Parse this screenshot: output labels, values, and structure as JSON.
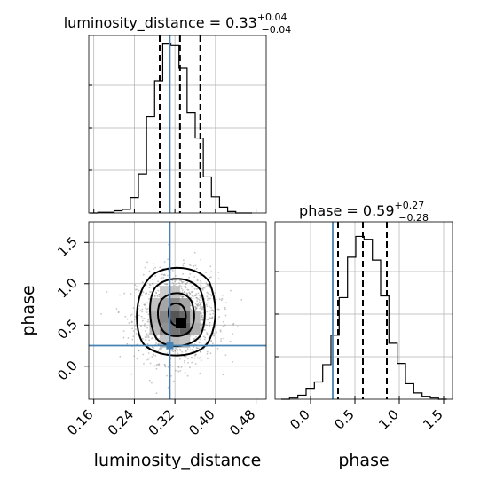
{
  "chart_data": [
    {
      "type": "histogram",
      "panel": "marginal-luminosity_distance",
      "title_prefix": "luminosity_distance = 0.33",
      "title_sup": "+0.04",
      "title_sub": "−0.04",
      "xlim": [
        0.15,
        0.5
      ],
      "bins": [
        0.152,
        0.168,
        0.184,
        0.2,
        0.216,
        0.232,
        0.248,
        0.264,
        0.28,
        0.296,
        0.312,
        0.328,
        0.344,
        0.36,
        0.376,
        0.392,
        0.408,
        0.424,
        0.44,
        0.456,
        0.472
      ],
      "counts": [
        0,
        1,
        1,
        3,
        5,
        21,
        53,
        131,
        180,
        230,
        228,
        197,
        137,
        102,
        49,
        22,
        8,
        2,
        0,
        0
      ],
      "max_count": 232,
      "truth": 0.31,
      "quantiles": [
        0.29,
        0.33,
        0.37
      ],
      "grid": true
    },
    {
      "type": "histogram",
      "panel": "marginal-phase",
      "title_prefix": "phase = 0.59",
      "title_sup": "+0.27",
      "title_sub": "−0.28",
      "xlim": [
        -0.4,
        1.6
      ],
      "bins": [
        -0.33,
        -0.237,
        -0.143,
        -0.05,
        0.043,
        0.137,
        0.23,
        0.323,
        0.417,
        0.51,
        0.603,
        0.697,
        0.79,
        0.883,
        0.977,
        1.07,
        1.163,
        1.257,
        1.35,
        1.443,
        1.537
      ],
      "counts": [
        0,
        2,
        7,
        19,
        30,
        60,
        111,
        176,
        246,
        282,
        277,
        241,
        179,
        97,
        62,
        27,
        11,
        5,
        2,
        0
      ],
      "max_count": 295,
      "truth": 0.25,
      "quantiles": [
        0.31,
        0.59,
        0.86
      ],
      "xticks": [
        "0.0",
        "0.5",
        "1.0",
        "1.5"
      ],
      "xtick_values": [
        0.0,
        0.5,
        1.0,
        1.5
      ],
      "xlabel": "phase",
      "grid": true
    },
    {
      "type": "scatter",
      "panel": "joint-luminosity_distance-phase",
      "xlim": [
        0.15,
        0.5
      ],
      "ylim": [
        -0.4,
        1.75
      ],
      "xticks": [
        "0.16",
        "0.24",
        "0.32",
        "0.40",
        "0.48"
      ],
      "xtick_values": [
        0.16,
        0.24,
        0.32,
        0.4,
        0.48
      ],
      "yticks": [
        "0.0",
        "0.5",
        "1.0",
        "1.5"
      ],
      "ytick_values": [
        0.0,
        0.5,
        1.0,
        1.5
      ],
      "xlabel": "luminosity_distance",
      "ylabel": "phase",
      "truth": [
        0.31,
        0.25
      ],
      "contour_levels": [
        "0.5σ",
        "1σ",
        "1.5σ",
        "2σ"
      ],
      "density_cells": [
        {
          "x": 0.28,
          "y": 0.45,
          "v": 0.35
        },
        {
          "x": 0.3,
          "y": 0.45,
          "v": 0.55
        },
        {
          "x": 0.32,
          "y": 0.45,
          "v": 0.7
        },
        {
          "x": 0.34,
          "y": 0.45,
          "v": 0.8
        },
        {
          "x": 0.36,
          "y": 0.45,
          "v": 0.4
        },
        {
          "x": 0.28,
          "y": 0.6,
          "v": 0.4
        },
        {
          "x": 0.3,
          "y": 0.6,
          "v": 0.6
        },
        {
          "x": 0.32,
          "y": 0.6,
          "v": 0.85
        },
        {
          "x": 0.34,
          "y": 0.6,
          "v": 0.75
        },
        {
          "x": 0.36,
          "y": 0.6,
          "v": 0.35
        },
        {
          "x": 0.28,
          "y": 0.75,
          "v": 0.3
        },
        {
          "x": 0.3,
          "y": 0.75,
          "v": 0.45
        },
        {
          "x": 0.32,
          "y": 0.75,
          "v": 0.6
        },
        {
          "x": 0.34,
          "y": 0.75,
          "v": 0.45
        },
        {
          "x": 0.3,
          "y": 0.3,
          "v": 0.3
        },
        {
          "x": 0.32,
          "y": 0.3,
          "v": 0.35
        },
        {
          "x": 0.34,
          "y": 0.3,
          "v": 0.3
        },
        {
          "x": 0.3,
          "y": 0.9,
          "v": 0.25
        },
        {
          "x": 0.32,
          "y": 0.9,
          "v": 0.3
        }
      ],
      "grid": true
    }
  ],
  "colors": {
    "truth": "#4682b4",
    "hist": "#000000",
    "grid": "#b0b0b0",
    "points": "#808080"
  }
}
